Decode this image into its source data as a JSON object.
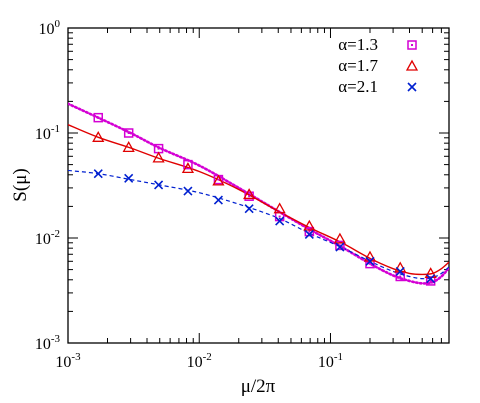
{
  "chart_data": {
    "type": "scatter",
    "title": "",
    "xlabel": "μ/2π",
    "ylabel": "S(μ)",
    "xscale": "log",
    "yscale": "log",
    "xlim": [
      0.001,
      0.8
    ],
    "ylim": [
      0.001,
      1
    ],
    "x_ticks": [
      {
        "value": 0.001,
        "base": "10",
        "exp": "-3"
      },
      {
        "value": 0.01,
        "base": "10",
        "exp": "-2"
      },
      {
        "value": 0.1,
        "base": "10",
        "exp": "-1"
      }
    ],
    "y_ticks": [
      {
        "value": 0.001,
        "base": "10",
        "exp": "-3"
      },
      {
        "value": 0.01,
        "base": "10",
        "exp": "-2"
      },
      {
        "value": 0.1,
        "base": "10",
        "exp": "-1"
      },
      {
        "value": 1,
        "base": "10",
        "exp": "0"
      }
    ],
    "grid": false,
    "legend_position": "top-right",
    "series": [
      {
        "name": "α=1.3",
        "color": "#d400d4",
        "marker": "square",
        "line_style": "dotted",
        "x": [
          0.0017,
          0.0029,
          0.0049,
          0.0082,
          0.014,
          0.024,
          0.041,
          0.069,
          0.118,
          0.2,
          0.34,
          0.58
        ],
        "y": [
          0.14,
          0.1,
          0.071,
          0.05,
          0.036,
          0.025,
          0.016,
          0.0115,
          0.0085,
          0.0057,
          0.0043,
          0.0039
        ],
        "fit_x": [
          0.001,
          0.0017,
          0.003,
          0.005,
          0.01,
          0.02,
          0.04,
          0.07,
          0.12,
          0.2,
          0.3,
          0.4,
          0.5,
          0.6,
          0.7,
          0.8
        ],
        "fit_y": [
          0.19,
          0.14,
          0.1,
          0.072,
          0.049,
          0.03,
          0.018,
          0.012,
          0.0083,
          0.0057,
          0.0044,
          0.0039,
          0.0037,
          0.0038,
          0.0043,
          0.0052
        ]
      },
      {
        "name": "α=1.7",
        "color": "#e00000",
        "marker": "triangle",
        "line_style": "solid",
        "x": [
          0.0017,
          0.0029,
          0.0049,
          0.0082,
          0.014,
          0.024,
          0.041,
          0.069,
          0.118,
          0.2,
          0.34,
          0.58
        ],
        "y": [
          0.091,
          0.073,
          0.058,
          0.046,
          0.035,
          0.026,
          0.019,
          0.013,
          0.0098,
          0.0066,
          0.0052,
          0.0046
        ],
        "fit_x": [
          0.001,
          0.0017,
          0.003,
          0.005,
          0.01,
          0.02,
          0.04,
          0.07,
          0.12,
          0.2,
          0.3,
          0.4,
          0.5,
          0.6,
          0.7,
          0.8
        ],
        "fit_y": [
          0.12,
          0.091,
          0.072,
          0.057,
          0.043,
          0.029,
          0.018,
          0.0125,
          0.0091,
          0.0064,
          0.0051,
          0.0046,
          0.0045,
          0.0046,
          0.0051,
          0.0059
        ]
      },
      {
        "name": "α=2.1",
        "color": "#0020d0",
        "marker": "cross",
        "line_style": "dashed",
        "x": [
          0.0017,
          0.0029,
          0.0049,
          0.0082,
          0.014,
          0.024,
          0.041,
          0.069,
          0.118,
          0.2,
          0.34,
          0.58
        ],
        "y": [
          0.041,
          0.037,
          0.032,
          0.028,
          0.023,
          0.019,
          0.0145,
          0.0108,
          0.0082,
          0.006,
          0.0048,
          0.0041
        ],
        "fit_x": [
          0.001,
          0.0017,
          0.003,
          0.005,
          0.01,
          0.02,
          0.04,
          0.07,
          0.12,
          0.2,
          0.3,
          0.4,
          0.5,
          0.6,
          0.7,
          0.8
        ],
        "fit_y": [
          0.044,
          0.041,
          0.036,
          0.032,
          0.027,
          0.021,
          0.0155,
          0.011,
          0.0082,
          0.006,
          0.0048,
          0.0043,
          0.0041,
          0.0042,
          0.0046,
          0.0053
        ]
      }
    ]
  }
}
